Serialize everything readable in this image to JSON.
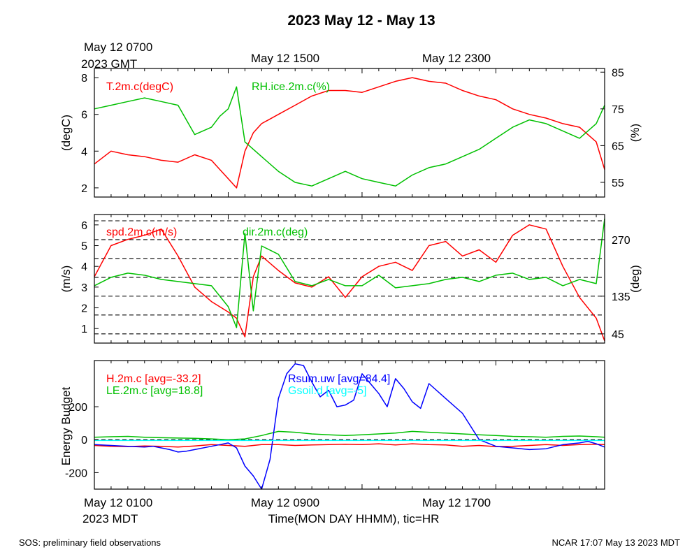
{
  "title": "2023 May 12 - May 13",
  "top_axis": {
    "gmt_first": "May 12 0700",
    "gmt_year": "2023 GMT",
    "gmt_ticks": [
      "May 12 1500",
      "May 12 2300"
    ]
  },
  "bottom_axis": {
    "mdt_first": "May 12 0100",
    "mdt_year": "2023 MDT",
    "mdt_ticks": [
      "May 12 0900",
      "May 12 1700"
    ],
    "xlabel": "Time(MON DAY HHMM), tic=HR"
  },
  "footer": {
    "left": "SOS: preliminary field observations",
    "right": "NCAR 17:07 May 13 2023 MDT"
  },
  "colors": {
    "red": "#ff0000",
    "green": "#00c000",
    "blue": "#0000ff",
    "cyan": "#00ffff"
  },
  "chart_data": [
    {
      "type": "line",
      "panel": "temperature_rh",
      "x_range_hours": [
        0,
        30.5
      ],
      "ylabel_left": "(degC)",
      "ylabel_right": "(%)",
      "ylim_left": [
        1.5,
        8.5
      ],
      "ylim_right": [
        51,
        86
      ],
      "yticks_left": [
        "2",
        "4",
        "6",
        "8"
      ],
      "yticks_right": [
        "55",
        "65",
        "75",
        "85"
      ],
      "series": [
        {
          "name": "T.2m.c(degC)",
          "axis": "left",
          "color": "#ff0000",
          "x": [
            0,
            1,
            2,
            3,
            4,
            5,
            6,
            7,
            7.5,
            8,
            8.5,
            9,
            9.5,
            10,
            11,
            12,
            13,
            14,
            15,
            16,
            17,
            18,
            19,
            20,
            21,
            22,
            23,
            24,
            25,
            26,
            27,
            28,
            29,
            30,
            30.5
          ],
          "y": [
            3.3,
            4.0,
            3.8,
            3.7,
            3.5,
            3.4,
            3.8,
            3.5,
            3.0,
            2.5,
            2.0,
            4.0,
            5.0,
            5.5,
            6.0,
            6.5,
            7.0,
            7.3,
            7.3,
            7.2,
            7.5,
            7.8,
            8.0,
            7.8,
            7.7,
            7.3,
            7.0,
            6.8,
            6.3,
            6.0,
            5.8,
            5.5,
            5.3,
            4.5,
            3.0
          ]
        },
        {
          "name": "RH.ice.2m.c(%)",
          "axis": "right",
          "color": "#00c000",
          "x": [
            0,
            1,
            2,
            3,
            4,
            5,
            6,
            7,
            7.5,
            8,
            8.5,
            9,
            9.5,
            10,
            11,
            12,
            13,
            14,
            15,
            16,
            17,
            18,
            19,
            20,
            21,
            22,
            23,
            24,
            25,
            26,
            27,
            28,
            29,
            30,
            30.5
          ],
          "y": [
            75,
            76,
            77,
            78,
            77,
            76,
            68,
            70,
            73,
            75,
            81,
            66,
            64,
            62,
            58,
            55,
            54,
            56,
            58,
            56,
            55,
            54,
            57,
            59,
            60,
            62,
            64,
            67,
            70,
            72,
            71,
            69,
            67,
            71,
            76
          ]
        }
      ]
    },
    {
      "type": "line",
      "panel": "wind",
      "x_range_hours": [
        0,
        30.5
      ],
      "ylabel_left": "(m/s)",
      "ylabel_right": "(deg)",
      "ylim_left": [
        0.3,
        6.5
      ],
      "ylim_right": [
        23,
        330
      ],
      "yticks_left": [
        "1",
        "2",
        "3",
        "4",
        "5",
        "6"
      ],
      "yticks_right": [
        "45",
        "135",
        "270"
      ],
      "grid": "dashed",
      "series": [
        {
          "name": "spd.2m.c(m/s)",
          "axis": "left",
          "color": "#ff0000",
          "x": [
            0,
            1,
            2,
            3,
            4,
            5,
            6,
            7,
            8,
            8.5,
            9,
            9.5,
            10,
            11,
            12,
            13,
            14,
            15,
            16,
            17,
            18,
            19,
            20,
            21,
            22,
            23,
            24,
            25,
            26,
            27,
            28,
            29,
            30,
            30.5
          ],
          "y": [
            3.5,
            5.0,
            5.3,
            5.5,
            5.8,
            4.5,
            3.0,
            2.3,
            1.8,
            1.5,
            0.6,
            3.5,
            4.5,
            3.8,
            3.2,
            3.0,
            3.5,
            2.5,
            3.5,
            4.0,
            4.2,
            3.8,
            5.0,
            5.2,
            4.5,
            4.8,
            4.2,
            5.5,
            6.0,
            5.8,
            4.0,
            2.5,
            1.5,
            0.4
          ]
        },
        {
          "name": "dir.2m.c(deg)",
          "axis": "right",
          "color": "#00c000",
          "x": [
            0,
            1,
            2,
            3,
            4,
            5,
            6,
            7,
            8,
            8.5,
            9,
            9.5,
            10,
            11,
            12,
            13,
            14,
            15,
            16,
            17,
            18,
            19,
            20,
            21,
            22,
            23,
            24,
            25,
            26,
            27,
            28,
            29,
            30,
            30.5
          ],
          "y": [
            160,
            180,
            190,
            185,
            175,
            170,
            165,
            160,
            110,
            60,
            285,
            100,
            255,
            235,
            170,
            160,
            175,
            160,
            160,
            185,
            155,
            160,
            165,
            175,
            180,
            170,
            185,
            190,
            175,
            180,
            160,
            175,
            165,
            320
          ]
        }
      ]
    },
    {
      "type": "line",
      "panel": "energy_budget",
      "x_range_hours": [
        0,
        30.5
      ],
      "ylabel": "Energy Budget",
      "ylim": [
        -300,
        480
      ],
      "yticks": [
        "-200",
        "0",
        "200"
      ],
      "series": [
        {
          "name": "H.2m.c [avg=-33.2]",
          "color": "#ff0000",
          "x": [
            0,
            1,
            2,
            3,
            4,
            5,
            6,
            7,
            8,
            9,
            10,
            11,
            12,
            13,
            14,
            15,
            16,
            17,
            18,
            19,
            20,
            21,
            22,
            23,
            24,
            25,
            26,
            27,
            28,
            29,
            30,
            30.5
          ],
          "y": [
            -35,
            -40,
            -42,
            -38,
            -40,
            -45,
            -38,
            -30,
            -35,
            -40,
            -30,
            -30,
            -35,
            -32,
            -30,
            -28,
            -30,
            -25,
            -32,
            -25,
            -30,
            -32,
            -40,
            -35,
            -42,
            -40,
            -35,
            -30,
            -35,
            -30,
            -28,
            -30
          ]
        },
        {
          "name": "LE.2m.c [avg=18.8]",
          "color": "#00c000",
          "x": [
            0,
            1,
            2,
            3,
            4,
            5,
            6,
            7,
            8,
            9,
            10,
            11,
            12,
            13,
            14,
            15,
            16,
            17,
            18,
            19,
            20,
            21,
            22,
            23,
            24,
            25,
            26,
            27,
            28,
            29,
            30,
            30.5
          ],
          "y": [
            15,
            18,
            20,
            15,
            12,
            10,
            8,
            5,
            0,
            5,
            25,
            50,
            45,
            35,
            30,
            25,
            30,
            35,
            40,
            50,
            45,
            40,
            35,
            30,
            25,
            20,
            18,
            15,
            20,
            22,
            18,
            15
          ]
        },
        {
          "name": "Rsum.uw [avg=84.4]",
          "color": "#0000ff",
          "x": [
            0,
            1,
            2,
            3,
            3.5,
            4,
            4.5,
            5,
            5.5,
            6,
            7,
            7.5,
            8,
            8.5,
            9,
            9.5,
            10,
            10.5,
            11,
            11.5,
            12,
            12.5,
            13,
            13.5,
            14,
            14.5,
            15,
            15.5,
            16,
            16.5,
            17,
            17.5,
            18,
            18.5,
            19,
            19.5,
            20,
            21,
            22,
            23,
            24,
            25,
            26,
            27,
            28,
            29,
            29.5,
            30,
            30.5
          ],
          "y": [
            -30,
            -35,
            -40,
            -45,
            -40,
            -50,
            -60,
            -75,
            -70,
            -60,
            -40,
            -30,
            -20,
            -50,
            -160,
            -220,
            -310,
            -120,
            250,
            400,
            460,
            450,
            350,
            260,
            300,
            200,
            210,
            240,
            400,
            340,
            280,
            200,
            370,
            310,
            230,
            190,
            340,
            250,
            160,
            0,
            -40,
            -50,
            -60,
            -55,
            -30,
            -20,
            -10,
            -25,
            -45
          ]
        },
        {
          "name": "Gsoil.d [avg=-5]",
          "color": "#00ffff",
          "x": [
            0,
            30.5
          ],
          "y": [
            -5,
            -5
          ]
        }
      ]
    }
  ]
}
